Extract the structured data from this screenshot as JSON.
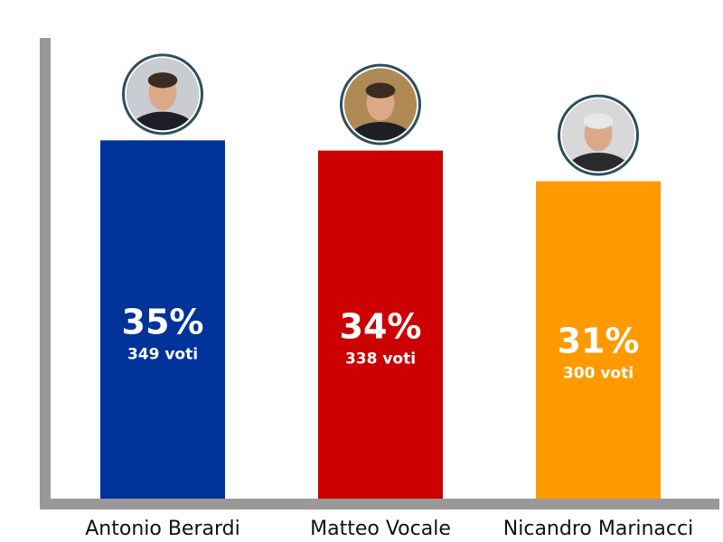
{
  "chart_data": {
    "type": "bar",
    "title": "",
    "xlabel": "",
    "ylabel": "",
    "categories": [
      "Antonio Berardi",
      "Matteo Vocale",
      "Nicandro Marinacci"
    ],
    "values": [
      35,
      34,
      31
    ],
    "unit": "%",
    "votes": [
      349,
      338,
      300
    ],
    "value_labels": [
      "35%",
      "34%",
      "31%"
    ],
    "vote_labels": [
      "349 voti",
      "338 voti",
      "300 voti"
    ],
    "colors": [
      "#003399",
      "#cc0000",
      "#ff9900"
    ],
    "axis_color": "#999999",
    "ylim": [
      0,
      45
    ],
    "grid": false,
    "legend": "none",
    "markers": [
      "candidate-photo",
      "candidate-photo",
      "candidate-photo"
    ]
  }
}
